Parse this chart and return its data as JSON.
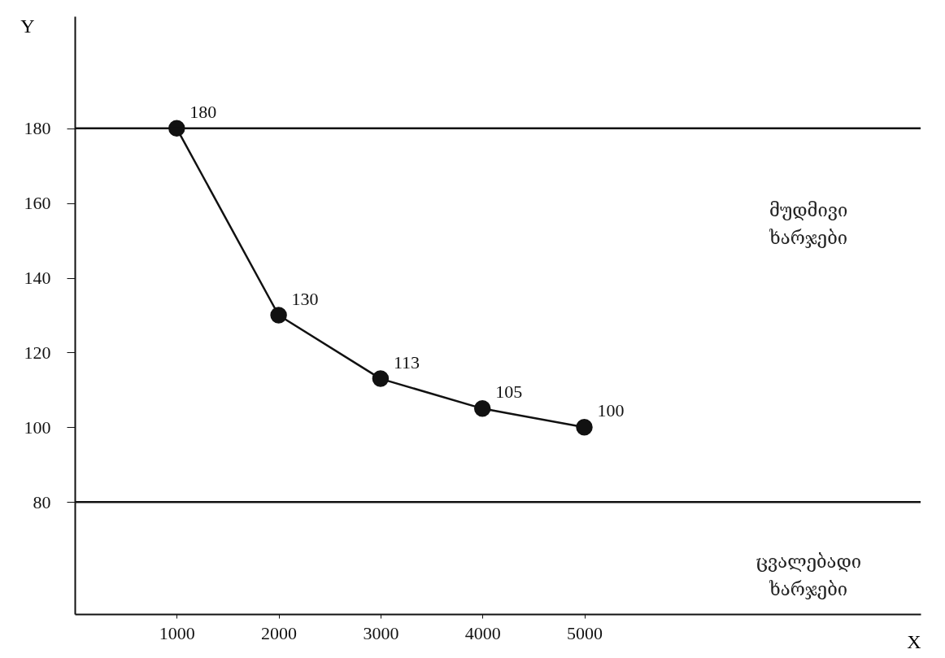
{
  "chart_data": {
    "type": "line",
    "xlabel": "X",
    "ylabel": "Y",
    "x": [
      1000,
      2000,
      3000,
      4000,
      5000
    ],
    "series": [
      {
        "color": "#111111",
        "values": [
          180,
          130,
          113,
          105,
          100
        ]
      }
    ],
    "xlim": [
      0,
      8300
    ],
    "xticks": [
      1000,
      2000,
      3000,
      4000,
      5000
    ],
    "ylim": [
      50,
      210
    ],
    "yticks": [
      80,
      100,
      120,
      140,
      160,
      180
    ],
    "ref_lines": [
      {
        "axis": "y",
        "value": 180,
        "color": "#111111"
      },
      {
        "axis": "y",
        "value": 80,
        "color": "#111111"
      }
    ],
    "annotations": [
      "მუდმივი ხარჯები",
      "ცვალებადი ხარჯები"
    ],
    "data_labels": true,
    "marker": "circle",
    "line_style": "solid",
    "grid": false
  }
}
